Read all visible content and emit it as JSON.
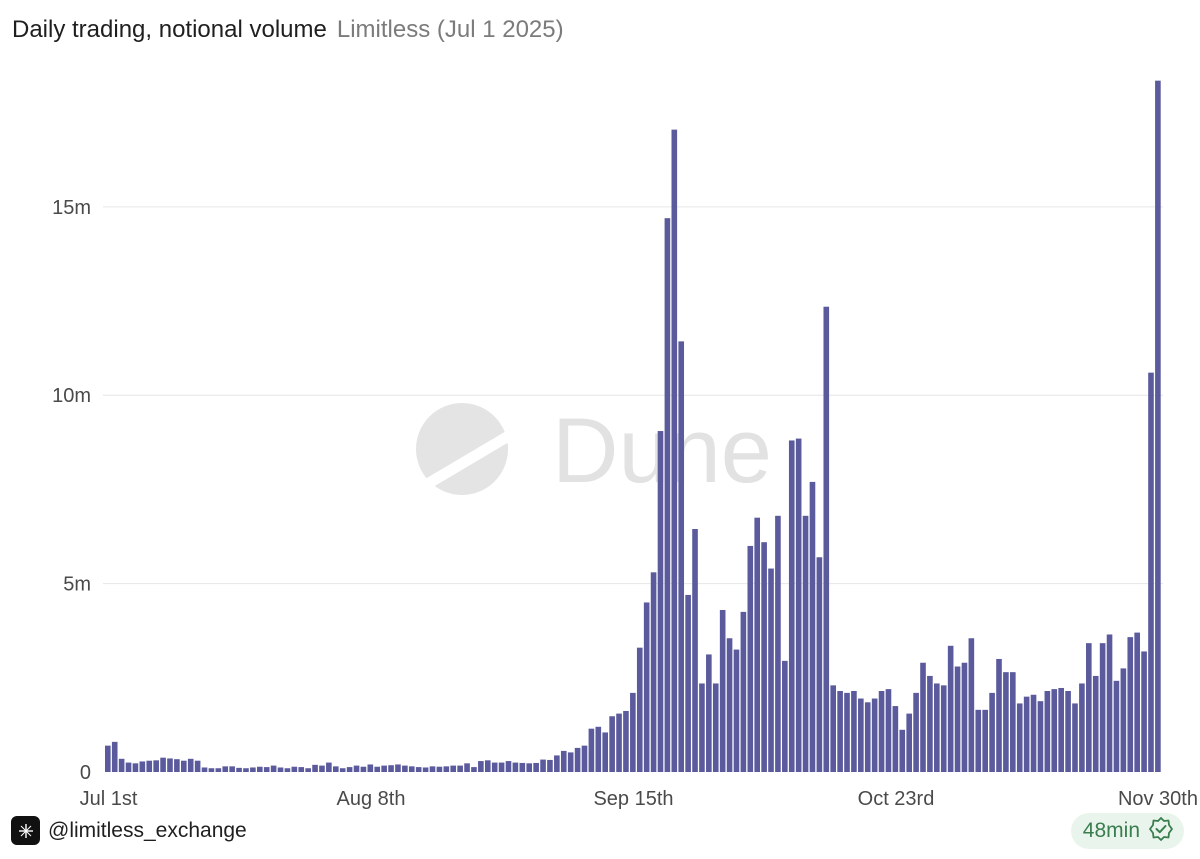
{
  "header": {
    "title": "Daily trading, notional volume",
    "subtitle": "Limitless (Jul 1 2025)"
  },
  "watermark": {
    "text": "Dune"
  },
  "footer": {
    "handle": "@limitless_exchange",
    "age": "48min",
    "logo_icon": "x-logo-icon",
    "status_icon": "verified-check-icon"
  },
  "colors": {
    "bar": "#5b5a9c",
    "badge_bg": "#e9f5ec",
    "badge_text": "#3a7d4f"
  },
  "chart_data": {
    "type": "bar",
    "title": "Daily trading, notional volume",
    "xlabel": "",
    "ylabel": "",
    "ylim": [
      0,
      18500000
    ],
    "grid": true,
    "yticks": [
      {
        "value": 0,
        "label": "0"
      },
      {
        "value": 5000000,
        "label": "5m"
      },
      {
        "value": 10000000,
        "label": "10m"
      },
      {
        "value": 15000000,
        "label": "15m"
      }
    ],
    "xticks": [
      {
        "index": 0,
        "label": "Jul 1st"
      },
      {
        "index": 38,
        "label": "Aug 8th"
      },
      {
        "index": 76,
        "label": "Sep 15th"
      },
      {
        "index": 114,
        "label": "Oct 23rd"
      },
      {
        "index": 152,
        "label": "Nov 30th"
      }
    ],
    "values": [
      700000,
      800000,
      350000,
      250000,
      230000,
      280000,
      300000,
      310000,
      380000,
      360000,
      340000,
      300000,
      350000,
      300000,
      120000,
      100000,
      100000,
      150000,
      150000,
      110000,
      100000,
      120000,
      140000,
      130000,
      170000,
      120000,
      100000,
      140000,
      130000,
      100000,
      190000,
      170000,
      250000,
      150000,
      100000,
      130000,
      170000,
      140000,
      200000,
      140000,
      170000,
      180000,
      200000,
      170000,
      150000,
      130000,
      120000,
      150000,
      140000,
      150000,
      170000,
      170000,
      230000,
      130000,
      290000,
      310000,
      250000,
      250000,
      290000,
      250000,
      240000,
      230000,
      240000,
      330000,
      320000,
      440000,
      560000,
      520000,
      640000,
      700000,
      1150000,
      1200000,
      1050000,
      1480000,
      1550000,
      1620000,
      2100000,
      3300000,
      4500000,
      5300000,
      9050000,
      14700000,
      17050000,
      11430000,
      4700000,
      6450000,
      2350000,
      3120000,
      2350000,
      4300000,
      3550000,
      3250000,
      4250000,
      6000000,
      6750000,
      6100000,
      5400000,
      6800000,
      2950000,
      8800000,
      8850000,
      6800000,
      7700000,
      5700000,
      12350000,
      2300000,
      2150000,
      2100000,
      2150000,
      1950000,
      1850000,
      1950000,
      2150000,
      2200000,
      1750000,
      1120000,
      1550000,
      2100000,
      2900000,
      2550000,
      2350000,
      2300000,
      3350000,
      2800000,
      2900000,
      3550000,
      1650000,
      1650000,
      2100000,
      3000000,
      2650000,
      2650000,
      1820000,
      2000000,
      2050000,
      1880000,
      2150000,
      2200000,
      2230000,
      2150000,
      1820000,
      2350000,
      3420000,
      2550000,
      3420000,
      3650000,
      2420000,
      2750000,
      3580000,
      3700000,
      3200000,
      10600000,
      18350000
    ]
  }
}
